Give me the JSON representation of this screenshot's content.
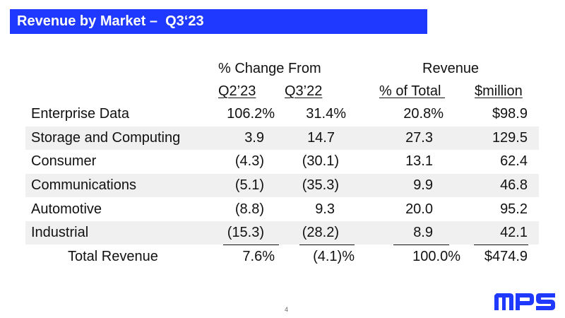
{
  "title": "Revenue by Market –  Q3‘23",
  "header": {
    "group_change": "% Change From",
    "group_revenue": "Revenue",
    "col_q2": "Q2’23",
    "col_q3": "Q3’22",
    "col_pct": "% of Total ",
    "col_mil": "$million"
  },
  "rows": [
    {
      "label": "Enterprise Data",
      "q2": "106.2%",
      "q3": "31.4%",
      "pct": "20.8%",
      "mil": "$98.9"
    },
    {
      "label": "Storage and Computing",
      "q2": "3.9",
      "q3": "14.7",
      "pct": "27.3",
      "mil": "129.5"
    },
    {
      "label": "Consumer",
      "q2": "(4.3)",
      "q3": "(30.1)",
      "pct": "13.1",
      "mil": "62.4"
    },
    {
      "label": "Communications",
      "q2": "(5.1)",
      "q3": "(35.3)",
      "pct": "9.9",
      "mil": "46.8"
    },
    {
      "label": "Automotive",
      "q2": "(8.8)",
      "q3": "9.3",
      "pct": "20.0",
      "mil": "95.2"
    },
    {
      "label": "Industrial",
      "q2": "(15.3)",
      "q3": "(28.2)",
      "pct": "8.9",
      "mil": "42.1"
    }
  ],
  "total": {
    "label": "Total Revenue",
    "q2": "7.6%",
    "q3": "(4.1)%",
    "pct": "100.0%",
    "mil": "$474.9"
  },
  "page_number": "4",
  "logo_text": "MPS",
  "colors": {
    "title_bar": "#1f39ff",
    "band": "#f0f0f0",
    "logo": "#1f39ff"
  }
}
